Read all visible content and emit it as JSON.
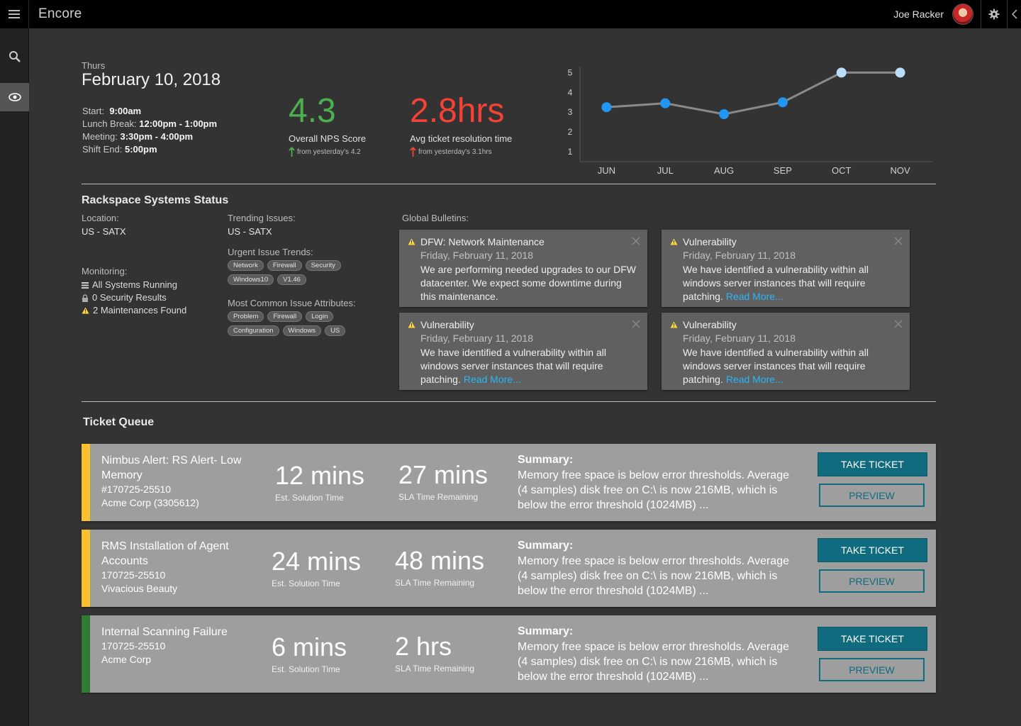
{
  "app": {
    "title": "Encore"
  },
  "user": {
    "name": "Joe Racker"
  },
  "header": {
    "day": "Thurs",
    "date": "February 10, 2018",
    "schedule": [
      {
        "label": "Start:",
        "value": "9:00am"
      },
      {
        "label": "Lunch Break:",
        "value": "12:00pm - 1:00pm"
      },
      {
        "label": "Meeting:",
        "value": "3:30pm - 4:00pm"
      },
      {
        "label": "Shift End:",
        "value": "5:00pm"
      }
    ]
  },
  "kpis": {
    "nps": {
      "value": "4.3",
      "label": "Overall NPS Score",
      "delta": "from yesterday's 4.2",
      "color": "#4caf50"
    },
    "resolution": {
      "value": "2.8hrs",
      "label": "Avg ticket resolution time",
      "delta": "from yesterday's 3.1hrs",
      "color": "#f44336"
    }
  },
  "chart_data": {
    "type": "line",
    "categories": [
      "JUN",
      "JUL",
      "AUG",
      "SEP",
      "OCT",
      "NOV"
    ],
    "values": [
      3.25,
      3.45,
      2.9,
      3.5,
      5.0,
      5.0
    ],
    "ylim": [
      0.5,
      5.3
    ],
    "yticks": [
      "1",
      "2",
      "3",
      "4",
      "5"
    ],
    "title": "",
    "xlabel": "",
    "ylabel": "",
    "point_colors": [
      "#2196f3",
      "#2196f3",
      "#2196f3",
      "#2196f3",
      "#bbdefb",
      "#bbdefb"
    ]
  },
  "systems": {
    "title": "Rackspace Systems Status",
    "location_label": "Location:",
    "location_value": "US - SATX",
    "monitoring_label": "Monitoring:",
    "monitoring": [
      {
        "icon": "list-icon",
        "text": "All Systems Running"
      },
      {
        "icon": "lock-icon",
        "text": "0 Security Results"
      },
      {
        "icon": "warning-icon",
        "text": "2 Maintenances Found"
      }
    ],
    "trending_label": "Trending Issues:",
    "trending_value": "US - SATX",
    "urgent_label": "Urgent Issue Trends:",
    "urgent_tags": [
      "Network",
      "Firewall",
      "Security",
      "Windows10",
      "V1.46"
    ],
    "common_label": "Most Common Issue Attributes:",
    "common_tags": [
      "Problem",
      "Firewall",
      "Login",
      "Configuration",
      "Windows",
      "US"
    ],
    "bulletins_label": "Global Bulletins:",
    "bulletins": [
      {
        "title": "DFW: Network Maintenance",
        "date": "Friday, February 11, 2018",
        "body": "We are performing needed upgrades to our DFW datacenter. We expect some downtime during this maintenance.",
        "link": ""
      },
      {
        "title": "Vulnerability",
        "date": "Friday, February 11, 2018",
        "body": "We have identified a vulnerability within all windows server instances that will require patching.",
        "link": "Read More..."
      },
      {
        "title": "Vulnerability",
        "date": "Friday, February 11, 2018",
        "body": "We have identified a vulnerability within all windows server instances that will require patching.",
        "link": "Read More..."
      },
      {
        "title": "Vulnerability",
        "date": "Friday, February 11, 2018",
        "body": "We have identified a vulnerability within all windows server instances that will require patching.",
        "link": "Read More..."
      }
    ]
  },
  "queue": {
    "title": "Ticket Queue",
    "take_label": "TAKE TICKET",
    "preview_label": "PREVIEW",
    "summary_label": "Summary:",
    "est_label": "Est. Solution Time",
    "sla_label": "SLA Time Remaining",
    "tickets": [
      {
        "title": "Nimbus Alert: RS Alert- Low Memory",
        "id": "#170725-25510",
        "account": "Acme Corp (3305612)",
        "est": "12 mins",
        "sla": "27 mins",
        "summary": "Memory free space is below error thresholds. Average (4 samples) disk free on C:\\ is now 216MB, which is below the error threshold (1024MB) ...",
        "color": "#fbc02d"
      },
      {
        "title": "RMS Installation of Agent Accounts",
        "id": "170725-25510",
        "account": "Vivacious Beauty",
        "est": "24 mins",
        "sla": "48 mins",
        "summary": "Memory free space is below error thresholds. Average (4 samples) disk free on C:\\ is now 216MB, which is below the error threshold (1024MB) ...",
        "color": "#fbc02d"
      },
      {
        "title": "Internal Scanning Failure",
        "id": "170725-25510",
        "account": "Acme Corp",
        "est": "6 mins",
        "sla": "2 hrs",
        "summary": "Memory free space is below error thresholds. Average (4 samples) disk free on C:\\ is now 216MB, which is below the error threshold (1024MB) ...",
        "color": "#2e7d32"
      }
    ]
  }
}
